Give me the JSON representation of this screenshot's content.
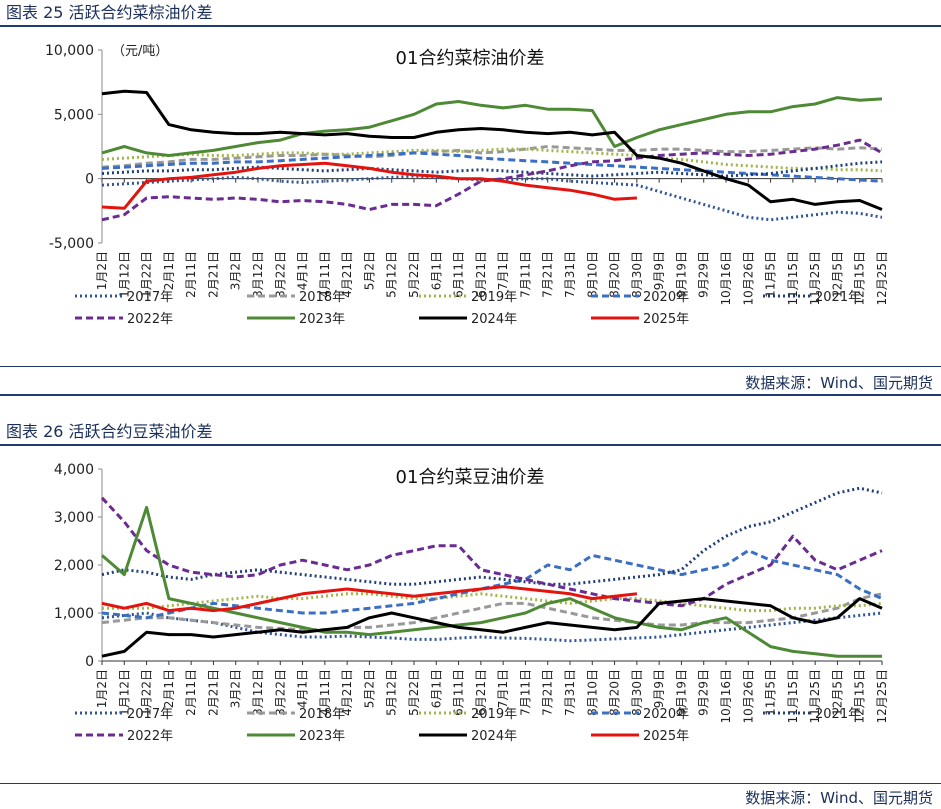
{
  "figures": [
    {
      "caption": "图表 25 活跃合约菜棕油价差",
      "source": "数据来源：Wind、国元期货"
    },
    {
      "caption": "图表 26 活跃合约豆菜油价差",
      "source": "数据来源：Wind、国元期货"
    }
  ],
  "chart_data": [
    {
      "type": "line",
      "title": "01合约菜棕油价差",
      "unit_label": "（元/吨）",
      "ylim": [
        -5000,
        10000
      ],
      "y_ticks": [
        -5000,
        0,
        5000,
        10000
      ],
      "y_tick_labels": [
        "-5,000",
        "0",
        "5,000",
        "10,000"
      ],
      "x_tick_labels": [
        "1月2日",
        "1月12日",
        "1月22日",
        "2月1日",
        "2月11日",
        "2月21日",
        "3月2日",
        "3月12日",
        "3月22日",
        "4月1日",
        "4月11日",
        "4月21日",
        "5月2日",
        "5月12日",
        "5月22日",
        "6月1日",
        "6月11日",
        "6月21日",
        "7月1日",
        "7月11日",
        "7月21日",
        "7月31日",
        "8月10日",
        "8月20日",
        "8月30日",
        "9月9日",
        "9月19日",
        "9月29日",
        "10月16日",
        "10月26日",
        "11月5日",
        "11月15日",
        "11月25日",
        "12月5日",
        "12月15日",
        "12月25日"
      ],
      "legend_position": "bottom",
      "series": [
        {
          "name": "2017年",
          "color": "#2e5597",
          "style": "dotted",
          "values": [
            -500,
            -400,
            -300,
            -200,
            -100,
            0,
            100,
            0,
            -200,
            -300,
            -200,
            -100,
            0,
            100,
            200,
            100,
            0,
            -100,
            -100,
            0,
            0,
            -200,
            -300,
            -400,
            -500,
            -1000,
            -1500,
            -2000,
            -2500,
            -3000,
            -3200,
            -3000,
            -2800,
            -2600,
            -2700,
            -3000
          ]
        },
        {
          "name": "2018年",
          "color": "#999999",
          "style": "dashed",
          "values": [
            900,
            1000,
            1200,
            1300,
            1500,
            1500,
            1600,
            1700,
            1800,
            1800,
            1900,
            1800,
            1700,
            1800,
            2000,
            2100,
            2200,
            2000,
            2100,
            2300,
            2500,
            2400,
            2300,
            2200,
            2200,
            2300,
            2300,
            2200,
            2100,
            2100,
            2200,
            2300,
            2400,
            2300,
            2400,
            2300
          ]
        },
        {
          "name": "2019年",
          "color": "#a3b44a",
          "style": "dotted",
          "values": [
            1500,
            1600,
            1700,
            1800,
            1900,
            1800,
            1800,
            1900,
            2000,
            2000,
            1900,
            1900,
            2000,
            2100,
            2200,
            2200,
            2100,
            2200,
            2300,
            2300,
            2200,
            2100,
            2000,
            1900,
            1800,
            1600,
            1500,
            1300,
            1100,
            1000,
            900,
            800,
            800,
            700,
            700,
            600
          ]
        },
        {
          "name": "2020年",
          "color": "#3a6fc4",
          "style": "dashed",
          "values": [
            800,
            900,
            1000,
            1100,
            1200,
            1200,
            1300,
            1300,
            1400,
            1500,
            1600,
            1700,
            1800,
            1900,
            2000,
            1900,
            1800,
            1600,
            1500,
            1400,
            1300,
            1200,
            1100,
            1000,
            900,
            800,
            700,
            600,
            500,
            400,
            300,
            200,
            100,
            0,
            -100,
            -200
          ]
        },
        {
          "name": "2021年",
          "color": "#1f3f7a",
          "style": "dotted",
          "values": [
            400,
            500,
            600,
            600,
            700,
            700,
            800,
            900,
            800,
            700,
            600,
            700,
            800,
            700,
            600,
            500,
            600,
            700,
            600,
            500,
            400,
            300,
            200,
            300,
            400,
            500,
            400,
            300,
            200,
            300,
            400,
            600,
            800,
            1000,
            1200,
            1300
          ]
        },
        {
          "name": "2022年",
          "color": "#6a2c91",
          "style": "dashed",
          "values": [
            -3200,
            -2800,
            -1500,
            -1400,
            -1500,
            -1600,
            -1500,
            -1600,
            -1800,
            -1700,
            -1800,
            -2000,
            -2400,
            -2000,
            -2000,
            -2100,
            -1200,
            -200,
            0,
            300,
            600,
            1000,
            1300,
            1400,
            1600,
            1800,
            1900,
            2000,
            1900,
            1800,
            1900,
            2100,
            2300,
            2600,
            3000,
            2000
          ]
        },
        {
          "name": "2023年",
          "color": "#4e8a35",
          "style": "solid",
          "values": [
            2000,
            2500,
            2000,
            1800,
            2000,
            2200,
            2500,
            2800,
            3000,
            3500,
            3700,
            3800,
            4000,
            4500,
            5000,
            5800,
            6000,
            5700,
            5500,
            5700,
            5400,
            5400,
            5300,
            2500,
            3200,
            3800,
            4200,
            4600,
            5000,
            5200,
            5200,
            5600,
            5800,
            6300,
            6100,
            6200
          ]
        },
        {
          "name": "2024年",
          "color": "#000000",
          "style": "solid",
          "values": [
            6600,
            6800,
            6700,
            4200,
            3800,
            3600,
            3500,
            3500,
            3600,
            3500,
            3400,
            3500,
            3300,
            3200,
            3200,
            3600,
            3800,
            3900,
            3800,
            3600,
            3500,
            3600,
            3400,
            3600,
            1800,
            1600,
            1200,
            600,
            0,
            -500,
            -1800,
            -1600,
            -2000,
            -1800,
            -1700,
            -2400
          ]
        },
        {
          "name": "2025年",
          "color": "#e3140f",
          "style": "solid",
          "values": [
            -2200,
            -2300,
            -200,
            0,
            100,
            300,
            500,
            800,
            1000,
            1100,
            1200,
            1000,
            800,
            500,
            300,
            200,
            0,
            0,
            -200,
            -500,
            -700,
            -900,
            -1200,
            -1600,
            -1500
          ]
        }
      ]
    },
    {
      "type": "line",
      "title": "01合约菜豆油价差",
      "ylim": [
        0,
        4000
      ],
      "y_ticks": [
        0,
        1000,
        2000,
        3000,
        4000
      ],
      "y_tick_labels": [
        "0",
        "1,000",
        "2,000",
        "3,000",
        "4,000"
      ],
      "x_tick_labels": [
        "1月2日",
        "1月12日",
        "1月22日",
        "2月1日",
        "2月11日",
        "2月21日",
        "3月2日",
        "3月12日",
        "3月22日",
        "4月1日",
        "4月11日",
        "4月21日",
        "5月2日",
        "5月12日",
        "5月22日",
        "6月1日",
        "6月11日",
        "6月21日",
        "7月1日",
        "7月11日",
        "7月21日",
        "7月31日",
        "8月10日",
        "8月20日",
        "8月30日",
        "9月9日",
        "9月19日",
        "9月29日",
        "10月16日",
        "10月26日",
        "11月5日",
        "11月15日",
        "11月25日",
        "12月5日",
        "12月15日",
        "12月25日"
      ],
      "legend_position": "bottom",
      "series": [
        {
          "name": "2017年",
          "color": "#2e5597",
          "style": "dotted",
          "values": [
            900,
            950,
            1000,
            900,
            850,
            800,
            700,
            600,
            550,
            500,
            500,
            520,
            500,
            480,
            450,
            450,
            480,
            500,
            480,
            470,
            450,
            420,
            440,
            460,
            480,
            500,
            550,
            600,
            650,
            700,
            750,
            800,
            850,
            900,
            950,
            1000
          ]
        },
        {
          "name": "2018年",
          "color": "#999999",
          "style": "dashed",
          "values": [
            800,
            850,
            900,
            900,
            850,
            800,
            750,
            700,
            680,
            650,
            650,
            700,
            700,
            750,
            800,
            900,
            1000,
            1100,
            1200,
            1200,
            1100,
            1000,
            900,
            850,
            800,
            750,
            750,
            800,
            800,
            800,
            850,
            900,
            1000,
            1100,
            1300,
            1400
          ]
        },
        {
          "name": "2019年",
          "color": "#a3b44a",
          "style": "dotted",
          "values": [
            1100,
            1100,
            1100,
            1150,
            1200,
            1250,
            1300,
            1350,
            1300,
            1300,
            1350,
            1400,
            1400,
            1350,
            1300,
            1300,
            1350,
            1400,
            1350,
            1300,
            1250,
            1200,
            1250,
            1300,
            1300,
            1250,
            1200,
            1150,
            1100,
            1050,
            1050,
            1100,
            1100,
            1150,
            1150,
            1200
          ]
        },
        {
          "name": "2020年",
          "color": "#3a6fc4",
          "style": "dashed",
          "values": [
            1000,
            950,
            900,
            1000,
            1100,
            1200,
            1150,
            1100,
            1050,
            1000,
            1000,
            1050,
            1100,
            1150,
            1200,
            1300,
            1400,
            1500,
            1600,
            1700,
            2000,
            1900,
            2200,
            2100,
            2000,
            1900,
            1800,
            1900,
            2000,
            2300,
            2100,
            2000,
            1900,
            1800,
            1500,
            1300
          ]
        },
        {
          "name": "2021年",
          "color": "#1f3f7a",
          "style": "dotted",
          "values": [
            1800,
            1900,
            1850,
            1750,
            1700,
            1800,
            1850,
            1900,
            1850,
            1800,
            1750,
            1700,
            1650,
            1600,
            1600,
            1650,
            1700,
            1750,
            1700,
            1650,
            1600,
            1600,
            1650,
            1700,
            1750,
            1800,
            1900,
            2300,
            2600,
            2800,
            2900,
            3100,
            3300,
            3500,
            3600,
            3500
          ]
        },
        {
          "name": "2022年",
          "color": "#6a2c91",
          "style": "dashed",
          "values": [
            3400,
            2900,
            2300,
            2000,
            1850,
            1800,
            1750,
            1800,
            2000,
            2100,
            2000,
            1900,
            2000,
            2200,
            2300,
            2400,
            2400,
            1900,
            1800,
            1700,
            1600,
            1500,
            1400,
            1300,
            1250,
            1200,
            1150,
            1300,
            1600,
            1800,
            2000,
            2600,
            2100,
            1900,
            2100,
            2300
          ]
        },
        {
          "name": "2023年",
          "color": "#4e8a35",
          "style": "solid",
          "values": [
            2200,
            1800,
            3200,
            1300,
            1200,
            1100,
            1000,
            900,
            800,
            700,
            600,
            600,
            550,
            600,
            650,
            700,
            750,
            800,
            900,
            1000,
            1200,
            1300,
            1100,
            900,
            800,
            700,
            650,
            800,
            900,
            600,
            300,
            200,
            150,
            100,
            100,
            100
          ]
        },
        {
          "name": "2024年",
          "color": "#000000",
          "style": "solid",
          "values": [
            100,
            200,
            600,
            550,
            550,
            500,
            550,
            600,
            650,
            600,
            650,
            700,
            900,
            1000,
            900,
            800,
            700,
            650,
            600,
            700,
            800,
            750,
            700,
            650,
            700,
            1200,
            1250,
            1300,
            1250,
            1200,
            1150,
            900,
            800,
            900,
            1300,
            1100
          ]
        },
        {
          "name": "2025年",
          "color": "#e3140f",
          "style": "solid",
          "values": [
            1200,
            1100,
            1200,
            1050,
            1100,
            1050,
            1100,
            1200,
            1300,
            1400,
            1450,
            1500,
            1450,
            1400,
            1350,
            1400,
            1450,
            1500,
            1550,
            1500,
            1450,
            1400,
            1300,
            1350,
            1400
          ]
        }
      ]
    }
  ]
}
